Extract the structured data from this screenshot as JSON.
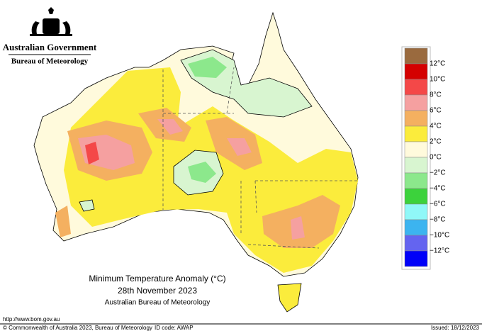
{
  "header": {
    "government": "Australian Government",
    "agency": "Bureau of Meteorology"
  },
  "map": {
    "title": "Minimum Temperature Anomaly (°C)",
    "date": "28th November 2023",
    "source": "Australian Bureau of Meteorology"
  },
  "legend": {
    "labels": [
      "12°C",
      "10°C",
      "8°C",
      "6°C",
      "4°C",
      "2°C",
      "0°C",
      "−2°C",
      "−4°C",
      "−6°C",
      "−8°C",
      "−10°C",
      "−12°C"
    ],
    "colors": [
      "#9a6a3e",
      "#d40000",
      "#f44848",
      "#f5a0a0",
      "#f4b060",
      "#fbec3c",
      "#fffadc",
      "#d8f5d0",
      "#8ce88c",
      "#3cd23c",
      "#90f8f8",
      "#3cb4f0",
      "#6464f0",
      "#0000f8"
    ]
  },
  "footer": {
    "url": "http://www.bom.gov.au",
    "copyright": "© Commonwealth of Australia 2023, Bureau of Meteorology",
    "id_code": "ID code: AWAP",
    "issued": "Issued: 18/12/2023"
  }
}
